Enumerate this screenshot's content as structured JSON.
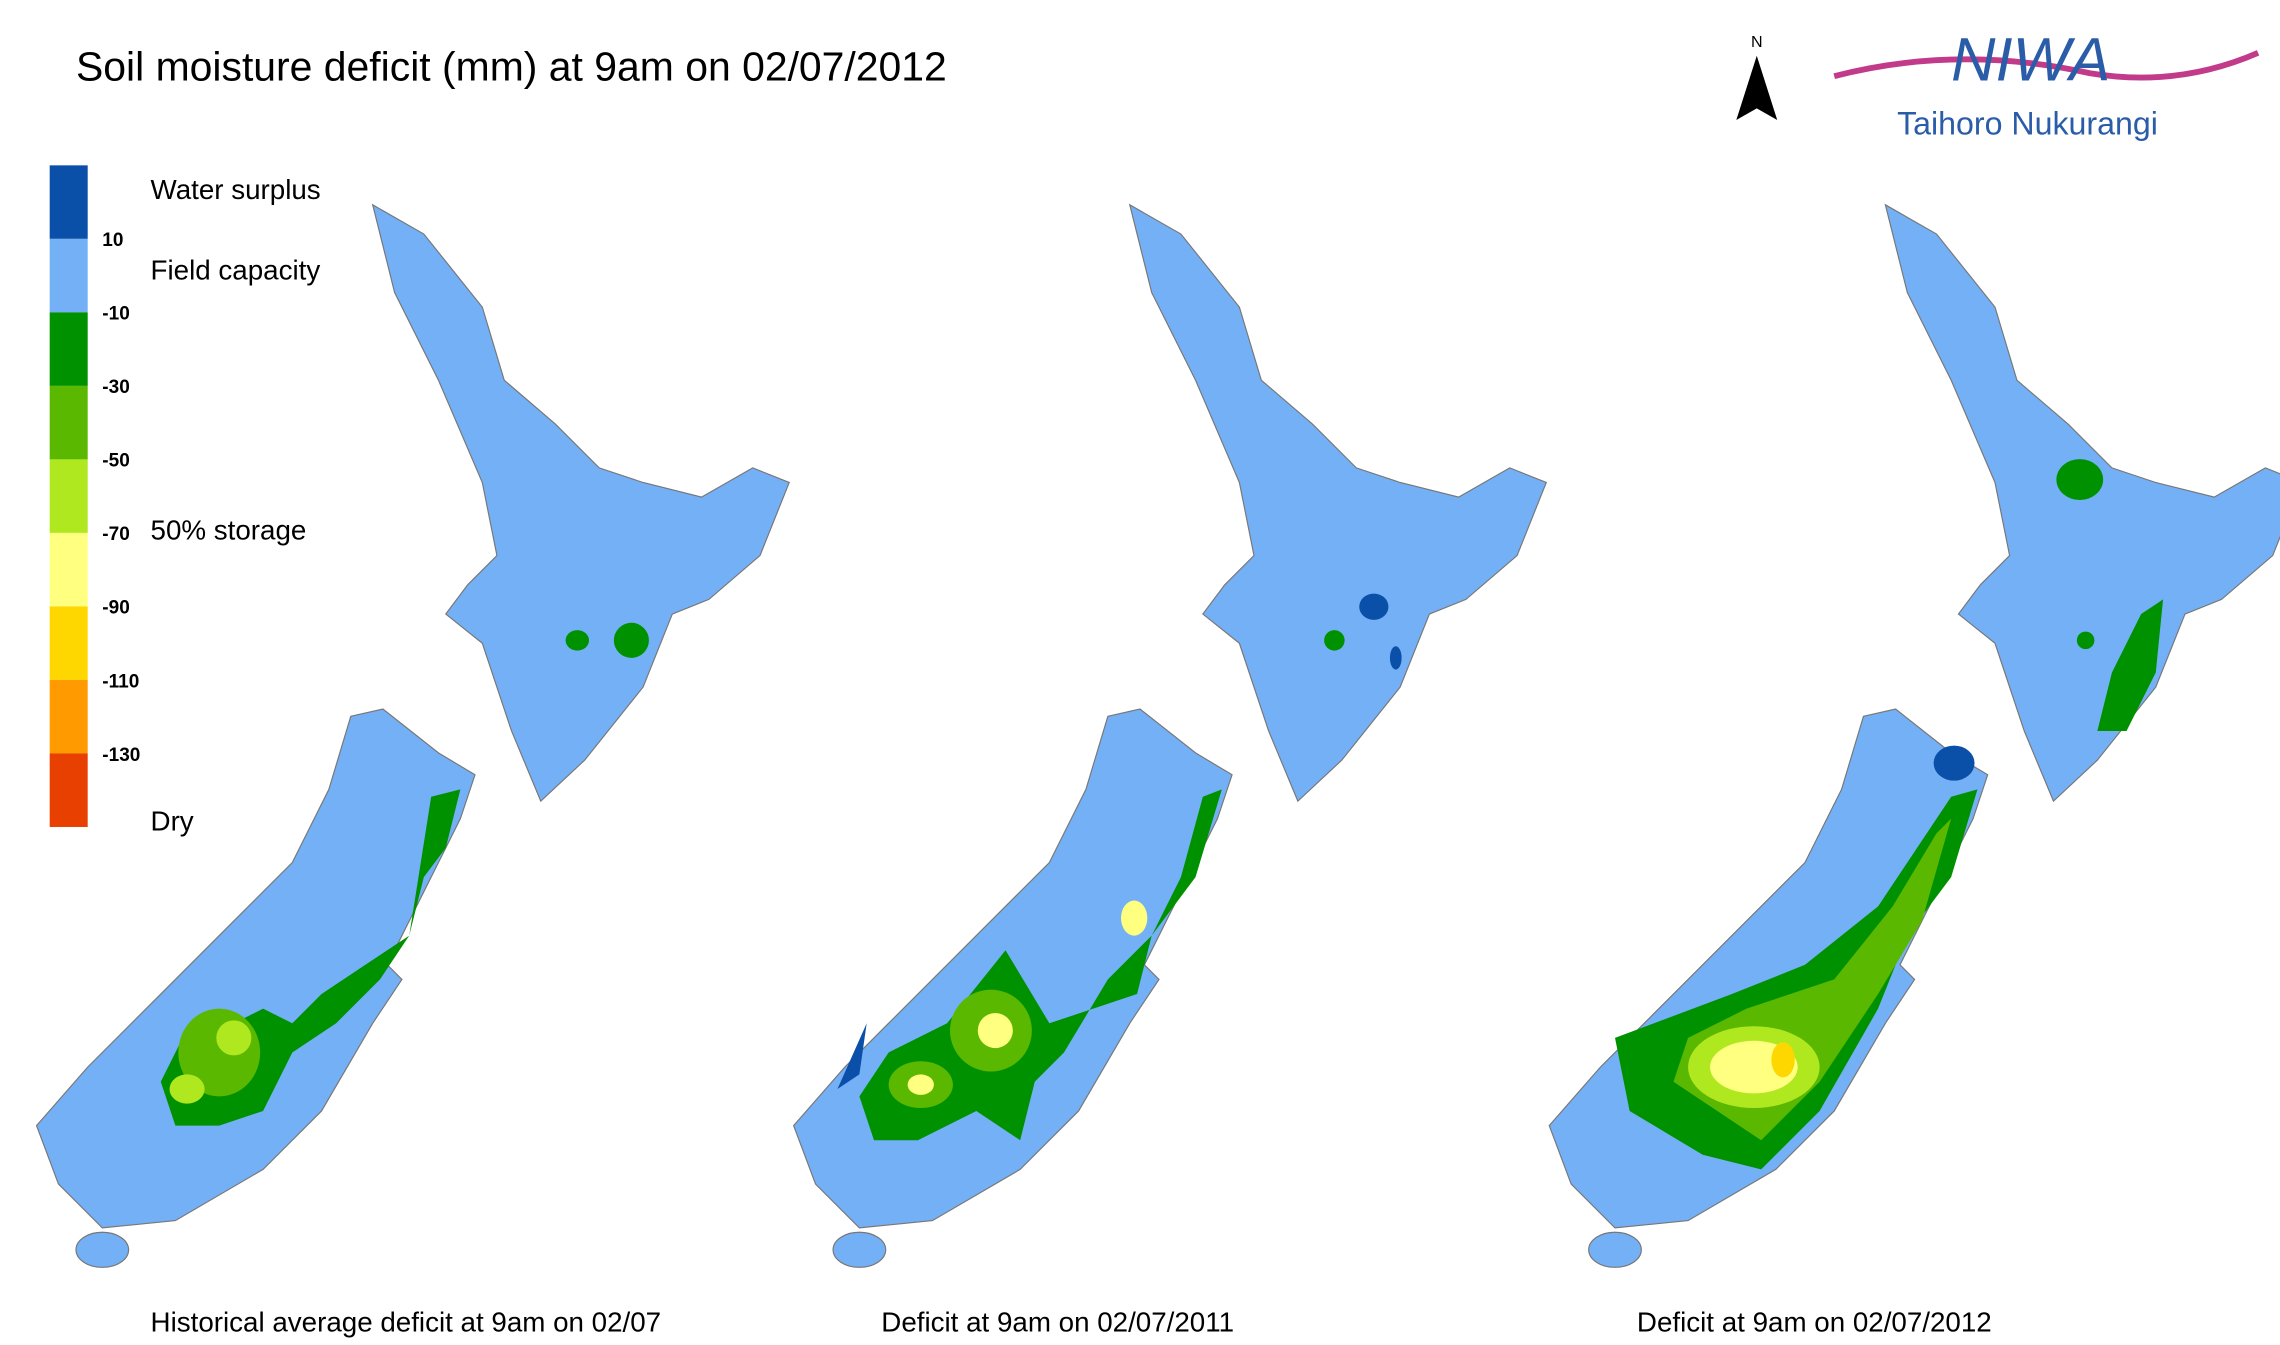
{
  "title": "Soil moisture deficit (mm) at  9am on 02/07/2012",
  "north": "N",
  "logo": {
    "name": "NIWA",
    "subtitle": "Taihoro Nukurangi"
  },
  "legend": {
    "colors": [
      "#0a4fa8",
      "#74b0f5",
      "#009100",
      "#5ab800",
      "#b0e820",
      "#ffff80",
      "#ffd700",
      "#ff9a00",
      "#e84000"
    ],
    "ticks": [
      10,
      -10,
      -30,
      -50,
      -70,
      -90,
      -110,
      -130
    ],
    "labels": [
      "Water surplus",
      "Field capacity",
      "50% storage",
      "Dry"
    ]
  },
  "maps": [
    {
      "caption": "Historical average deficit at  9am on 02/07"
    },
    {
      "caption": "Deficit at  9am on 02/07/2011"
    },
    {
      "caption": "Deficit at  9am on 02/07/2012"
    }
  ]
}
